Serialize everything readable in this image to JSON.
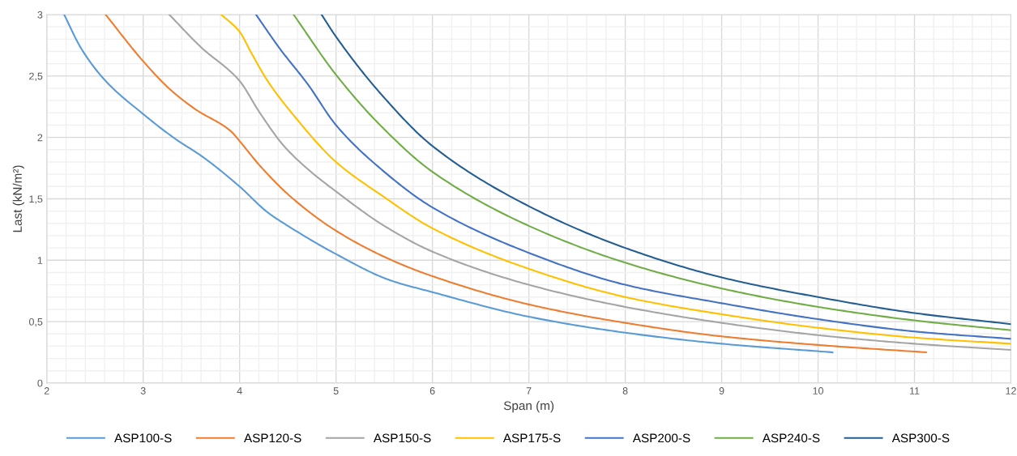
{
  "chart_data": {
    "type": "line",
    "xlabel": "Span (m)",
    "ylabel": "Last (kN/m²)",
    "xlim": [
      2,
      12
    ],
    "xticks": [
      2,
      3,
      4,
      5,
      6,
      7,
      8,
      9,
      10,
      11,
      12
    ],
    "ylim": [
      0,
      3
    ],
    "yticks": [
      0,
      {
        "value": 0.5,
        "label": "0,5"
      },
      1,
      {
        "value": 1.5,
        "label": "1,5"
      },
      2,
      {
        "value": 2.5,
        "label": "2,5"
      },
      3
    ],
    "grid": true,
    "legend": "bottom",
    "marker": "none",
    "line_style": "solid",
    "series": [
      {
        "name": "ASP100-S",
        "color": "#5b9bd5",
        "x": [
          2.18,
          2.36,
          2.61,
          3.0,
          3.33,
          3.62,
          4.0,
          4.29,
          4.5,
          5.0,
          5.55,
          6.0,
          7.0,
          8.0,
          9.0,
          10.15
        ],
        "values": [
          3.0,
          2.72,
          2.46,
          2.19,
          1.99,
          1.84,
          1.6,
          1.39,
          1.28,
          1.05,
          0.84,
          0.74,
          0.54,
          0.41,
          0.32,
          0.25
        ]
      },
      {
        "name": "ASP120-S",
        "color": "#ed7d31",
        "x": [
          2.61,
          3.0,
          3.28,
          3.54,
          3.91,
          4.0,
          4.21,
          4.54,
          5.0,
          5.55,
          6.0,
          7.0,
          8.0,
          9.0,
          10.0,
          11.12
        ],
        "values": [
          3.0,
          2.62,
          2.39,
          2.23,
          2.05,
          1.97,
          1.77,
          1.51,
          1.24,
          1.01,
          0.87,
          0.64,
          0.49,
          0.38,
          0.31,
          0.25
        ]
      },
      {
        "name": "ASP150-S",
        "color": "#a5a5a5",
        "x": [
          3.27,
          3.62,
          3.9,
          4.0,
          4.21,
          4.46,
          4.71,
          5.0,
          5.5,
          6.0,
          7.0,
          8.0,
          9.0,
          10.0,
          11.0,
          12.0
        ],
        "values": [
          3.0,
          2.72,
          2.54,
          2.46,
          2.2,
          1.93,
          1.74,
          1.56,
          1.28,
          1.07,
          0.8,
          0.62,
          0.49,
          0.39,
          0.32,
          0.27
        ]
      },
      {
        "name": "ASP175-S",
        "color": "#ffc000",
        "x": [
          3.81,
          4.0,
          4.12,
          4.29,
          4.54,
          5.0,
          5.47,
          6.0,
          7.0,
          8.0,
          9.0,
          10.0,
          11.0,
          12.0
        ],
        "values": [
          3.0,
          2.86,
          2.69,
          2.46,
          2.2,
          1.8,
          1.53,
          1.26,
          0.93,
          0.7,
          0.56,
          0.45,
          0.37,
          0.32
        ]
      },
      {
        "name": "ASP200-S",
        "color": "#4472c4",
        "x": [
          4.17,
          4.42,
          4.71,
          5.0,
          5.47,
          6.0,
          7.0,
          8.0,
          9.0,
          10.0,
          11.0,
          12.0
        ],
        "values": [
          3.0,
          2.72,
          2.43,
          2.1,
          1.74,
          1.43,
          1.06,
          0.8,
          0.65,
          0.52,
          0.42,
          0.36
        ]
      },
      {
        "name": "ASP240-S",
        "color": "#70ad47",
        "x": [
          4.56,
          5.0,
          5.47,
          6.0,
          7.0,
          8.0,
          9.0,
          10.0,
          11.0,
          12.0
        ],
        "values": [
          3.0,
          2.51,
          2.09,
          1.72,
          1.28,
          0.98,
          0.77,
          0.62,
          0.51,
          0.43
        ]
      },
      {
        "name": "ASP300-S",
        "color": "#255e91",
        "x": [
          4.85,
          5.0,
          5.47,
          6.0,
          7.0,
          8.0,
          9.0,
          10.0,
          11.0,
          12.0
        ],
        "values": [
          3.0,
          2.82,
          2.35,
          1.93,
          1.44,
          1.1,
          0.86,
          0.7,
          0.57,
          0.48
        ]
      }
    ]
  }
}
